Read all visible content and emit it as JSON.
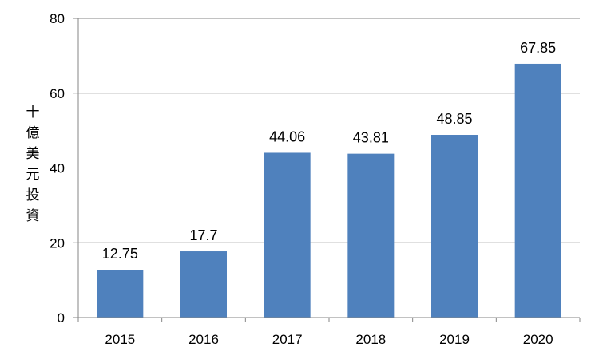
{
  "chart_data": {
    "type": "bar",
    "categories": [
      "2015",
      "2016",
      "2017",
      "2018",
      "2019",
      "2020"
    ],
    "values": [
      12.75,
      17.7,
      44.06,
      43.81,
      48.85,
      67.85
    ],
    "data_labels": [
      "12.75",
      "17.7",
      "44.06",
      "43.81",
      "48.85",
      "67.85"
    ],
    "title": "",
    "xlabel": "",
    "ylabel": "十億美元投資",
    "ylim": [
      0,
      80
    ],
    "yticks": [
      0,
      20,
      40,
      60,
      80
    ],
    "grid": true,
    "legend": "none",
    "bar_color": "#4f81bd",
    "grid_color": "#868686"
  }
}
